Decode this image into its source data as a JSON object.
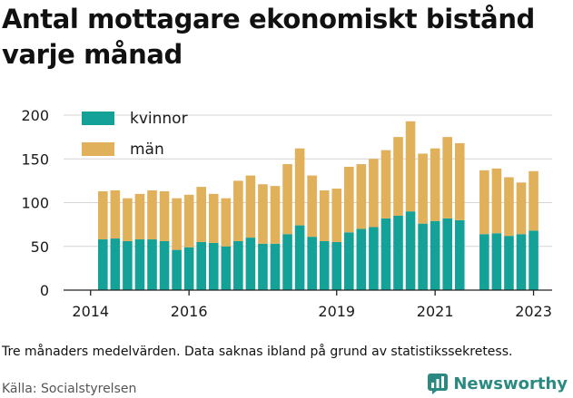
{
  "title": "Antal mottagare ekonomiskt bistånd varje månad",
  "note": "Tre månaders medelvärden. Data saknas ibland på grund av statistikssekretess.",
  "source": "Källa: Socialstyrelsen",
  "brand": {
    "name": "Newsworthy",
    "color": "#2a8a82"
  },
  "chart_data": {
    "type": "bar",
    "stacked": true,
    "title": "Antal mottagare ekonomiskt bistånd varje månad",
    "xlabel": "",
    "ylabel": "",
    "ylim": [
      0,
      200
    ],
    "yticks": [
      0,
      50,
      100,
      150,
      200
    ],
    "xticks": [
      "2014",
      "2016",
      "2019",
      "2021",
      "2023"
    ],
    "grid": true,
    "legend": "top-left",
    "series": [
      {
        "name": "kvinnor",
        "color": "#13a198",
        "values": [
          58,
          59,
          56,
          58,
          58,
          56,
          46,
          49,
          55,
          54,
          50,
          56,
          60,
          53,
          53,
          64,
          74,
          61,
          56,
          55,
          66,
          70,
          72,
          82,
          85,
          90,
          76,
          79,
          82,
          80,
          null,
          64,
          65,
          62,
          64,
          68
        ]
      },
      {
        "name": "män",
        "color": "#e0b05a",
        "values": [
          55,
          55,
          49,
          52,
          56,
          57,
          59,
          60,
          63,
          56,
          55,
          69,
          71,
          68,
          66,
          80,
          88,
          70,
          58,
          61,
          75,
          74,
          78,
          78,
          90,
          103,
          80,
          83,
          93,
          88,
          null,
          73,
          74,
          67,
          59,
          68
        ]
      }
    ]
  }
}
